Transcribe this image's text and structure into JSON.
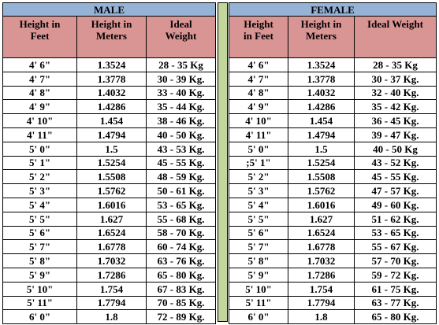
{
  "male": {
    "title": "MALE",
    "headers": [
      "Height in\nFeet",
      "Height in\nMeters",
      "Ideal\nWeight"
    ],
    "rows": [
      [
        "4' 6\"",
        "1.3524",
        "28 - 35 Kg"
      ],
      [
        "4' 7\"",
        "1.3778",
        "30 - 39 Kg."
      ],
      [
        "4' 8\"",
        "1.4032",
        "33 - 40 Kg."
      ],
      [
        "4' 9\"",
        "1.4286",
        "35 - 44 Kg."
      ],
      [
        "4' 10\"",
        "1.454",
        "38 - 46 Kg."
      ],
      [
        "4' 11\"",
        "1.4794",
        "40 - 50 Kg."
      ],
      [
        "5' 0\"",
        "1.5",
        "43 - 53 Kg."
      ],
      [
        "5' 1\"",
        "1.5254",
        "45 - 55 Kg."
      ],
      [
        "5' 2\"",
        "1.5508",
        "48 - 59 Kg."
      ],
      [
        "5' 3\"",
        "1.5762",
        "50 - 61 Kg."
      ],
      [
        "5' 4\"",
        "1.6016",
        "53 - 65 Kg."
      ],
      [
        "5' 5\"",
        "1.627",
        "55 - 68 Kg."
      ],
      [
        "5' 6\"",
        "1.6524",
        "58 - 70 Kg."
      ],
      [
        "5' 7\"",
        "1.6778",
        "60 - 74 Kg."
      ],
      [
        "5' 8\"",
        "1.7032",
        "63 - 76 Kg."
      ],
      [
        "5' 9\"",
        "1.7286",
        "65 - 80 Kg."
      ],
      [
        "5' 10\"",
        "1.754",
        "67 - 83 Kg."
      ],
      [
        "5' 11\"",
        "1.7794",
        "70 - 85 Kg."
      ],
      [
        "6' 0\"",
        "1.8",
        "72 - 89 Kg."
      ]
    ]
  },
  "female": {
    "title": "FEMALE",
    "headers": [
      "Height\nin Feet",
      "Height in\nMeters",
      "Ideal Weight"
    ],
    "rows": [
      [
        "4' 6\"",
        "1.3524",
        "28 - 35 Kg"
      ],
      [
        "4' 7\"",
        "1.3778",
        "30 - 37 Kg."
      ],
      [
        "4' 8\"",
        "1.4032",
        "32 - 40 Kg."
      ],
      [
        "4' 9\"",
        "1.4286",
        "35 - 42 Kg."
      ],
      [
        "4' 10\"",
        "1.454",
        "36 - 45 Kg."
      ],
      [
        "4' 11\"",
        "1.4794",
        "39 - 47 Kg."
      ],
      [
        "5' 0\"",
        "1.5",
        "40 - 50 Kg"
      ],
      [
        ";5' 1\"",
        "1.5254",
        "43 - 52 Kg."
      ],
      [
        "5' 2\"",
        "1.5508",
        "45 - 55 Kg."
      ],
      [
        "5' 3\"",
        "1.5762",
        "47 - 57 Kg."
      ],
      [
        "5' 4\"",
        "1.6016",
        "49 - 60 Kg."
      ],
      [
        "5' 5\"",
        "1.627",
        "51 - 62 Kg."
      ],
      [
        "5' 6\"",
        "1.6524",
        "53 - 65 Kg."
      ],
      [
        "5' 7\"",
        "1.6778",
        "55 - 67 Kg."
      ],
      [
        "5' 8\"",
        "1.7032",
        "57 - 70 Kg."
      ],
      [
        "5' 9\"",
        "1.7286",
        "59 - 72 Kg."
      ],
      [
        "5' 10\"",
        "1.754",
        "61 - 75 Kg."
      ],
      [
        "5' 11\"",
        "1.7794",
        "63 - 77 Kg."
      ],
      [
        "6' 0\"",
        "1.8",
        "65 - 80 Kg."
      ]
    ]
  }
}
